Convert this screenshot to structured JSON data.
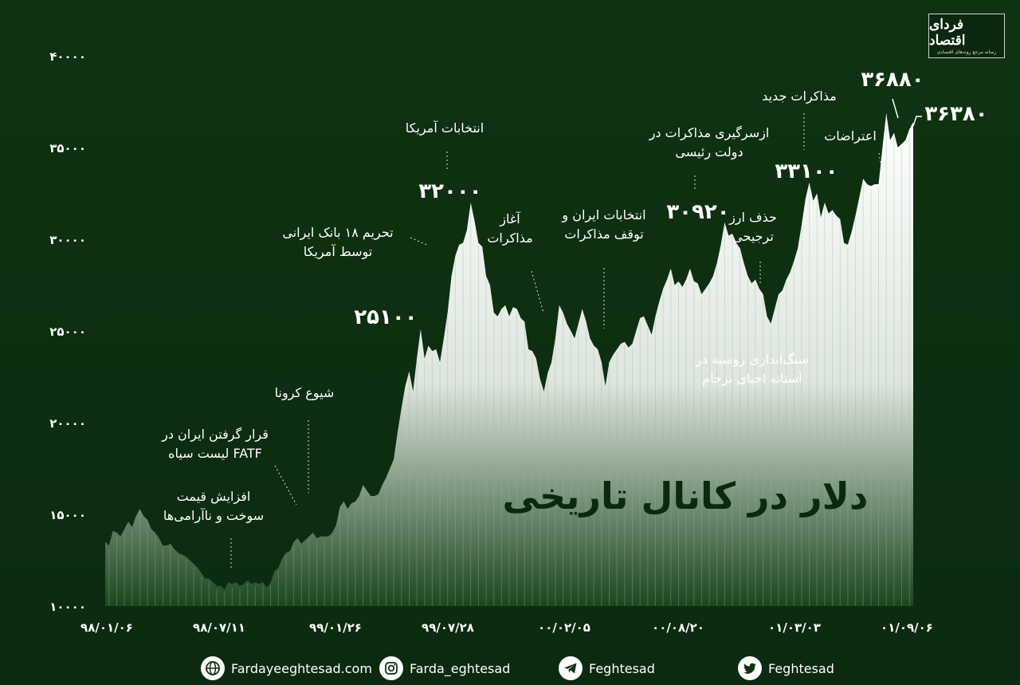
{
  "brand": {
    "logo_text": "فردای اقتصاد",
    "logo_tagline": "رسانه مرجع روندهای اقتصادی"
  },
  "chart_data": {
    "type": "area",
    "title": "دلار در کانال تاریخی",
    "ylim": [
      10000,
      40000
    ],
    "y_ticks": [
      10000,
      15000,
      20000,
      25000,
      30000,
      35000,
      40000
    ],
    "y_tick_labels": [
      "۱۰۰۰۰",
      "۱۵۰۰۰",
      "۲۰۰۰۰",
      "۲۵۰۰۰",
      "۳۰۰۰۰",
      "۳۵۰۰۰",
      "۴۰۰۰۰"
    ],
    "x_tick_labels": [
      "۹۸/۰۱/۰۶",
      "۹۸/۰۷/۱۱",
      "۹۹/۰۱/۲۶",
      "۹۹/۰۷/۲۸",
      "۰۰/۰۲/۰۵",
      "۰۰/۰۸/۲۰",
      "۰۱/۰۳/۰۳",
      "۰۱/۰۹/۰۶"
    ],
    "grid": false,
    "legend": "none",
    "fill_color": "#ffffff",
    "background_color": "#0f3211",
    "series": [
      {
        "values": [
          13500,
          13300,
          14100,
          14000,
          13800,
          14200,
          14600,
          14300,
          14900,
          15300,
          14900,
          14700,
          14200,
          14000,
          13700,
          13300,
          13300,
          13400,
          13100,
          12900,
          12800,
          12700,
          12500,
          12300,
          12100,
          11800,
          11500,
          11500,
          11300,
          11100,
          11100,
          10900,
          11300,
          11200,
          11300,
          11100,
          11200,
          11400,
          11200,
          11300,
          11200,
          11300,
          11000,
          11300,
          11900,
          12100,
          12600,
          12900,
          13000,
          13500,
          13700,
          13400,
          13600,
          13800,
          14000,
          13700,
          13800,
          13800,
          13800,
          14000,
          14400,
          15400,
          15700,
          15300,
          15600,
          15700,
          16000,
          16600,
          16300,
          16000,
          16000,
          16100,
          16600,
          17000,
          17500,
          18000,
          19500,
          20800,
          22000,
          22800,
          21700,
          23500,
          25100,
          23500,
          24200,
          23900,
          24000,
          23300,
          24600,
          26000,
          28000,
          29100,
          29700,
          29800,
          30500,
          32000,
          31000,
          29800,
          29600,
          28000,
          27500,
          26000,
          25800,
          26200,
          26400,
          25800,
          26300,
          26200,
          25700,
          25500,
          24000,
          23900,
          23500,
          22400,
          21700,
          22700,
          23300,
          24600,
          26400,
          26000,
          25400,
          25000,
          24600,
          25400,
          26200,
          25500,
          24600,
          24200,
          24000,
          23300,
          22000,
          23300,
          23700,
          24000,
          24300,
          24400,
          24100,
          24300,
          25000,
          25700,
          25800,
          25300,
          24800,
          25800,
          26600,
          27300,
          27800,
          28400,
          27500,
          27700,
          27400,
          27800,
          28400,
          27700,
          27600,
          27000,
          27300,
          27600,
          28000,
          28700,
          29700,
          30920,
          30200,
          30300,
          29800,
          29500,
          28700,
          28000,
          27600,
          27800,
          27300,
          27000,
          25800,
          25400,
          26200,
          27000,
          27200,
          27800,
          28200,
          28800,
          29500,
          30800,
          32200,
          33100,
          32100,
          32500,
          31200,
          32000,
          31400,
          31600,
          31300,
          31100,
          29800,
          29700,
          30400,
          31300,
          32300,
          33300,
          33000,
          32900,
          33000,
          33000,
          35000,
          36880,
          35400,
          35800,
          35000,
          35200,
          35400,
          36000,
          36380
        ]
      }
    ],
    "peak_labels": [
      {
        "label": "۲۵۱۰۰",
        "value": 25100
      },
      {
        "label": "۳۲۰۰۰",
        "value": 32000
      },
      {
        "label": "۳۰۹۲۰",
        "value": 30920
      },
      {
        "label": "۳۳۱۰۰",
        "value": 33100
      },
      {
        "label": "۳۶۸۸۰",
        "value": 36880
      },
      {
        "label": "۳۶۳۸۰",
        "value": 36380
      }
    ],
    "annotations": [
      {
        "lines": [
          "افزایش قیمت",
          "سوخت و ناآرامی‌ها"
        ]
      },
      {
        "lines": [
          "قرار گرفتن ایران در",
          "لیست سیاه FATF"
        ]
      },
      {
        "lines": [
          "شیوع کرونا"
        ]
      },
      {
        "lines": [
          "تحریم ۱۸ بانک ایرانی",
          "توسط آمریکا"
        ]
      },
      {
        "lines": [
          "انتخابات آمریکا"
        ]
      },
      {
        "lines": [
          "آغاز",
          "مذاکرات"
        ]
      },
      {
        "lines": [
          "انتخابات ایران و",
          "توقف مذاکرات"
        ]
      },
      {
        "lines": [
          "ازسرگیری مذاکرات در",
          "دولت رئیسی"
        ]
      },
      {
        "lines": [
          "سنگ‌اندازی روسیه در",
          "آستانه احیای برجام"
        ]
      },
      {
        "lines": [
          "حذف ارز",
          "ترجیحی"
        ]
      },
      {
        "lines": [
          "مذاکرات جدید"
        ]
      },
      {
        "lines": [
          "اعتراضات"
        ]
      }
    ]
  },
  "footer": {
    "items": [
      {
        "icon": "globe-icon",
        "text": "Fardayeeghtesad.com"
      },
      {
        "icon": "instagram-icon",
        "text": "Farda_eghtesad"
      },
      {
        "icon": "telegram-icon",
        "text": "Feghtesad"
      },
      {
        "icon": "twitter-icon",
        "text": "Feghtesad"
      }
    ]
  }
}
